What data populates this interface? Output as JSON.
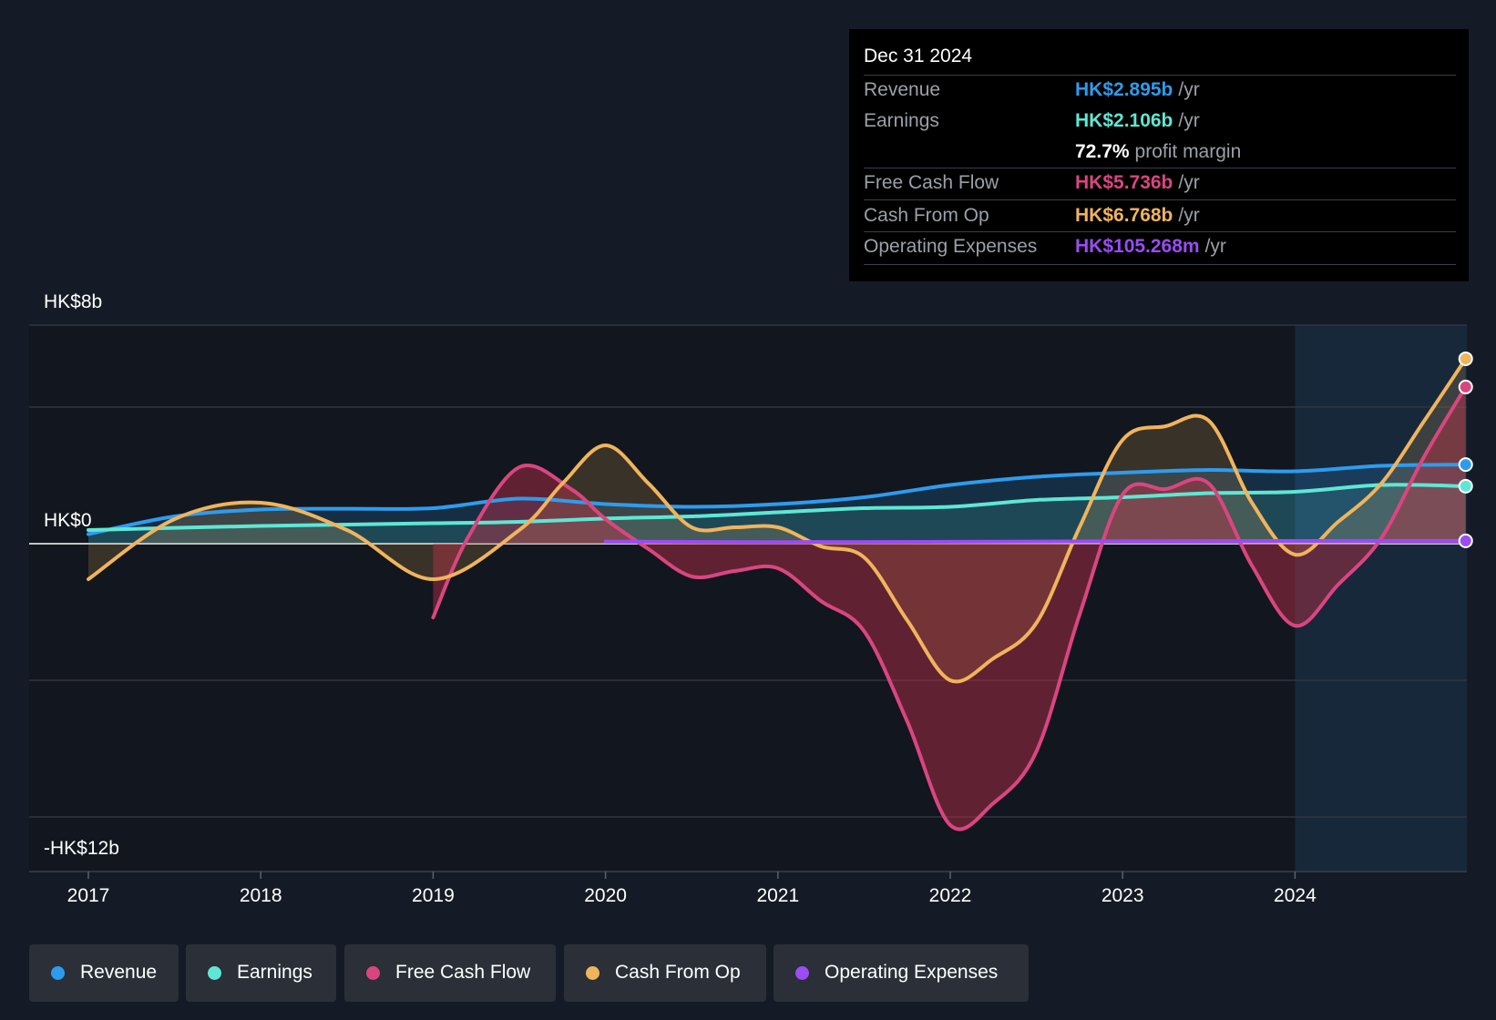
{
  "tooltip": {
    "date": "Dec 31 2024",
    "rows": [
      {
        "label": "Revenue",
        "value": "HK$2.895b",
        "unit": "/yr",
        "color": "#2d9cee"
      },
      {
        "label": "Earnings",
        "value": "HK$2.106b",
        "unit": "/yr",
        "color": "#5ee7d4"
      },
      {
        "label": "",
        "value": "72.7%",
        "unit": "profit margin",
        "color": "#ffffff"
      },
      {
        "label": "Free Cash Flow",
        "value": "HK$5.736b",
        "unit": "/yr",
        "color": "#d9467f"
      },
      {
        "label": "Cash From Op",
        "value": "HK$6.768b",
        "unit": "/yr",
        "color": "#f0b45c"
      },
      {
        "label": "Operating Expenses",
        "value": "HK$105.268m",
        "unit": "/yr",
        "color": "#9b4cf2"
      }
    ]
  },
  "legend": [
    {
      "label": "Revenue",
      "color": "#2d9cee"
    },
    {
      "label": "Earnings",
      "color": "#5ee7d4"
    },
    {
      "label": "Free Cash Flow",
      "color": "#d9467f"
    },
    {
      "label": "Cash From Op",
      "color": "#f0b45c"
    },
    {
      "label": "Operating Expenses",
      "color": "#9b4cf2"
    }
  ],
  "chart_data": {
    "type": "line",
    "y_labels": {
      "top": "HK$8b",
      "zero": "HK$0",
      "bottom": "-HK$12b"
    },
    "ylim": [
      -12,
      8
    ],
    "xlim": [
      2016.67,
      2024.99
    ],
    "x_ticks": [
      "2017",
      "2018",
      "2019",
      "2020",
      "2021",
      "2022",
      "2023",
      "2024"
    ],
    "series": [
      {
        "name": "Revenue",
        "color": "#2d9cee",
        "x": [
          2017,
          2017.5,
          2018,
          2018.5,
          2019,
          2019.5,
          2020,
          2020.5,
          2021,
          2021.5,
          2022,
          2022.5,
          2023,
          2023.5,
          2024,
          2024.5,
          2024.99
        ],
        "y": [
          0.35,
          1.0,
          1.25,
          1.28,
          1.3,
          1.65,
          1.45,
          1.35,
          1.45,
          1.7,
          2.15,
          2.45,
          2.6,
          2.7,
          2.65,
          2.85,
          2.895
        ]
      },
      {
        "name": "Earnings",
        "color": "#5ee7d4",
        "x": [
          2017,
          2017.5,
          2018,
          2018.5,
          2019,
          2019.5,
          2020,
          2020.5,
          2021,
          2021.5,
          2022,
          2022.5,
          2023,
          2023.5,
          2024,
          2024.5,
          2024.99
        ],
        "y": [
          0.5,
          0.58,
          0.65,
          0.7,
          0.75,
          0.8,
          0.92,
          1.0,
          1.15,
          1.3,
          1.35,
          1.6,
          1.7,
          1.85,
          1.9,
          2.15,
          2.106
        ]
      },
      {
        "name": "Free Cash Flow",
        "color": "#d9467f",
        "x": [
          2019,
          2019.2,
          2019.5,
          2019.8,
          2020,
          2020.25,
          2020.5,
          2020.75,
          2021,
          2021.25,
          2021.5,
          2021.75,
          2022,
          2022.25,
          2022.5,
          2022.75,
          2023,
          2023.25,
          2023.5,
          2023.75,
          2024,
          2024.25,
          2024.5,
          2024.75,
          2024.99
        ],
        "y": [
          -2.7,
          0.2,
          2.8,
          2.0,
          0.9,
          -0.2,
          -1.2,
          -1.0,
          -0.9,
          -2.1,
          -3.2,
          -6.5,
          -10.3,
          -9.5,
          -7.6,
          -2.6,
          1.8,
          2.0,
          2.2,
          -0.8,
          -3.0,
          -1.5,
          0.2,
          3.2,
          5.736
        ]
      },
      {
        "name": "Cash From Op",
        "color": "#f0b45c",
        "x": [
          2017,
          2017.5,
          2018,
          2018.5,
          2019,
          2019.5,
          2019.75,
          2020,
          2020.25,
          2020.5,
          2020.75,
          2021,
          2021.25,
          2021.5,
          2021.75,
          2022,
          2022.25,
          2022.5,
          2022.75,
          2023,
          2023.25,
          2023.5,
          2023.75,
          2024,
          2024.25,
          2024.5,
          2024.75,
          2024.99
        ],
        "y": [
          -1.3,
          0.9,
          1.5,
          0.5,
          -1.3,
          0.5,
          2.2,
          3.6,
          2.2,
          0.6,
          0.6,
          0.6,
          -0.1,
          -0.5,
          -2.8,
          -5.0,
          -4.2,
          -2.9,
          0.6,
          3.8,
          4.3,
          4.5,
          1.5,
          -0.4,
          0.8,
          2.2,
          4.5,
          6.768
        ]
      },
      {
        "name": "Operating Expenses",
        "color": "#9b4cf2",
        "x": [
          2020,
          2021,
          2022,
          2023,
          2024,
          2024.99
        ],
        "y": [
          0.08,
          0.06,
          0.07,
          0.09,
          0.1,
          0.105
        ]
      }
    ]
  }
}
